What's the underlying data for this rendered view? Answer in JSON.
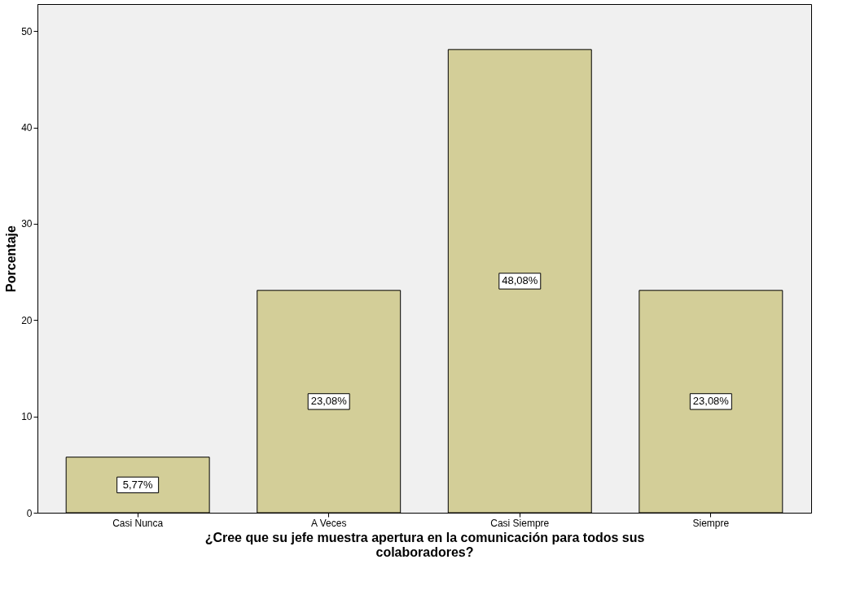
{
  "chart_data": {
    "type": "bar",
    "xlabel": "¿Cree que su jefe muestra apertura en la comunicación para todos sus colaboradores?",
    "ylabel": "Porcentaje",
    "categories": [
      "Casi Nunca",
      "A Veces",
      "Casi Siempre",
      "Siempre"
    ],
    "values": [
      5.77,
      23.08,
      48.08,
      23.08
    ],
    "value_labels": [
      "5,77%",
      "23,08%",
      "48,08%",
      "23,08%"
    ],
    "color": "#d3ce98",
    "ylim": [
      0,
      52.8
    ],
    "yticks": [
      0,
      10,
      20,
      30,
      40,
      50
    ],
    "grid": false
  }
}
